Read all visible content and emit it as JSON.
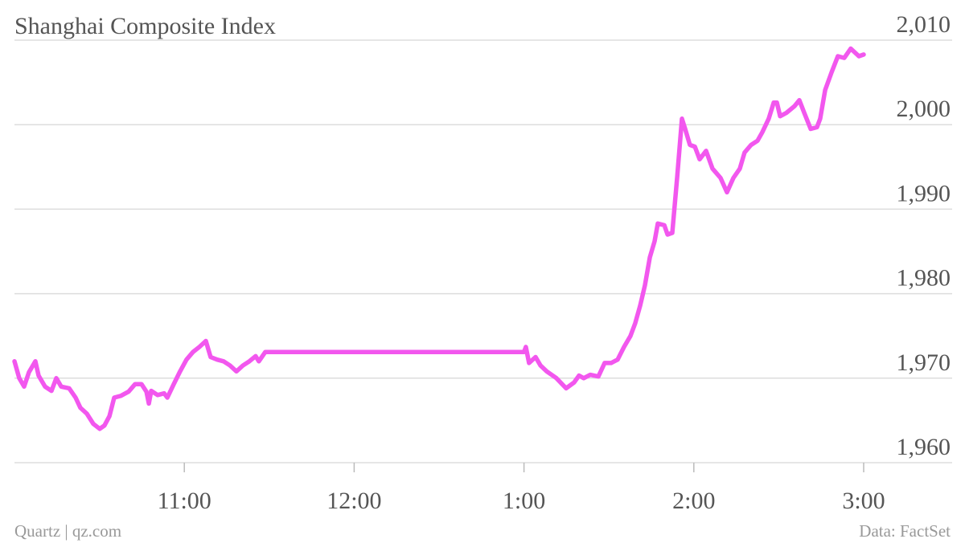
{
  "chart_data": {
    "type": "line",
    "title": "Shanghai Composite Index",
    "source": "Data: FactSet",
    "credit": "Quartz | qz.com",
    "x": [
      10,
      10.028,
      10.057,
      10.085,
      10.123,
      10.142,
      10.18,
      10.218,
      10.246,
      10.275,
      10.322,
      10.36,
      10.388,
      10.426,
      10.464,
      10.502,
      10.53,
      10.559,
      10.587,
      10.625,
      10.672,
      10.71,
      10.748,
      10.777,
      10.791,
      10.805,
      10.843,
      10.881,
      10.9,
      10.938,
      10.975,
      11.013,
      11.051,
      11.089,
      11.127,
      11.155,
      11.193,
      11.231,
      11.269,
      11.307,
      11.345,
      11.383,
      11.42,
      11.439,
      11.477,
      13.0,
      13.011,
      13.03,
      13.068,
      13.097,
      13.134,
      13.191,
      13.248,
      13.295,
      13.324,
      13.352,
      13.39,
      13.438,
      13.475,
      13.513,
      13.551,
      13.589,
      13.627,
      13.655,
      13.684,
      13.712,
      13.741,
      13.769,
      13.788,
      13.826,
      13.845,
      13.873,
      13.902,
      13.93,
      13.949,
      13.977,
      14.006,
      14.034,
      14.072,
      14.11,
      14.157,
      14.195,
      14.233,
      14.271,
      14.299,
      14.337,
      14.375,
      14.403,
      14.441,
      14.47,
      14.489,
      14.508,
      14.545,
      14.593,
      14.621,
      14.65,
      14.688,
      14.725,
      14.744,
      14.773,
      14.811,
      14.848,
      14.886,
      14.924,
      14.972,
      15.0
    ],
    "series": [
      {
        "name": "Shanghai Composite Index",
        "color": "#f257ee",
        "values": [
          1972,
          1970,
          1969,
          1970.7,
          1972,
          1970.3,
          1969,
          1968.5,
          1970,
          1969,
          1968.8,
          1967.7,
          1966.5,
          1965.8,
          1964.6,
          1964,
          1964.4,
          1965.5,
          1967.7,
          1967.9,
          1968.4,
          1969.3,
          1969.3,
          1968.4,
          1967,
          1968.5,
          1968,
          1968.2,
          1967.7,
          1969.3,
          1970.8,
          1972.2,
          1973.1,
          1973.7,
          1974.4,
          1972.5,
          1972.2,
          1972,
          1971.5,
          1970.8,
          1971.5,
          1972,
          1972.6,
          1972,
          1973.1,
          1973.1,
          1973.7,
          1971.8,
          1972.5,
          1971.5,
          1970.8,
          1970,
          1968.8,
          1969.5,
          1970.3,
          1970,
          1970.4,
          1970.2,
          1971.8,
          1971.8,
          1972.2,
          1973.7,
          1975,
          1976.5,
          1978.6,
          1981,
          1984.3,
          1986.2,
          1988.3,
          1988.1,
          1987,
          1987.2,
          1993.8,
          2000.7,
          1999.5,
          1997.6,
          1997.4,
          1995.9,
          1996.9,
          1994.8,
          1993.7,
          1992,
          1993.7,
          1994.8,
          1996.7,
          1997.6,
          1998.1,
          1999.1,
          2000.7,
          2002.6,
          2002.6,
          2001,
          2001.4,
          2002.2,
          2002.9,
          2001.4,
          1999.5,
          1999.7,
          2000.7,
          2004.1,
          2006.2,
          2008.1,
          2007.9,
          2009,
          2008.1,
          2008.3
        ]
      }
    ],
    "xlim": [
      10,
      15
    ],
    "xticks": [
      {
        "value": 11,
        "label": "11:00"
      },
      {
        "value": 12,
        "label": "12:00"
      },
      {
        "value": 13,
        "label": "1:00"
      },
      {
        "value": 14,
        "label": "2:00"
      },
      {
        "value": 15,
        "label": "3:00"
      }
    ],
    "ylim": [
      1960,
      2010
    ],
    "yticks": [
      {
        "value": 1960,
        "label": "1,960"
      },
      {
        "value": 1970,
        "label": "1,970"
      },
      {
        "value": 1980,
        "label": "1,980"
      },
      {
        "value": 1990,
        "label": "1,990"
      },
      {
        "value": 2000,
        "label": "2,000"
      },
      {
        "value": 2010,
        "label": "2,010"
      }
    ],
    "grid": true
  }
}
